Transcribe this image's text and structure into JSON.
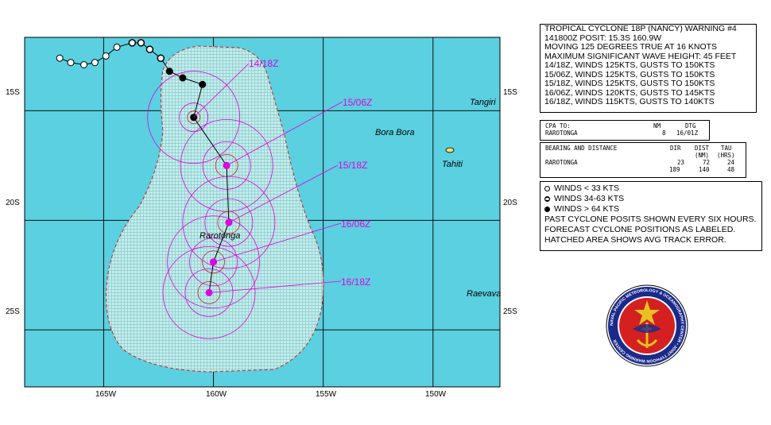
{
  "map": {
    "bg_color": "#ffffff",
    "ocean_color": "#5ad0e0",
    "hatch_color": "#8ec8c8",
    "grid_color": "#111111",
    "track_color": "#e000e0",
    "lat_labels": [
      "15S",
      "20S",
      "25S"
    ],
    "lon_labels": [
      "165W",
      "160W",
      "155W",
      "150W"
    ],
    "places": {
      "tangiri": "Tangiri",
      "bora_bora": "Bora Bora",
      "tahiti": "Tahiti",
      "rarotonga": "Rarotonga",
      "raevavae": "Raevava"
    },
    "forecast_labels": [
      "14/18Z",
      "15/06Z",
      "15/18Z",
      "16/06Z",
      "16/18Z"
    ],
    "forecast_positions": [
      {
        "time": "14/18Z",
        "lat": -15.3,
        "lon": -160.9
      },
      {
        "time": "15/06Z",
        "lat": -17.5,
        "lon": -159.4
      },
      {
        "time": "15/18Z",
        "lat": -20.1,
        "lon": -159.3
      },
      {
        "time": "16/06Z",
        "lat": -21.9,
        "lon": -160.0
      },
      {
        "time": "16/18Z",
        "lat": -23.3,
        "lon": -160.2
      }
    ],
    "past_track": [
      {
        "lat": -12.6,
        "lon": -167.0,
        "intensity": "weak"
      },
      {
        "lat": -12.8,
        "lon": -166.5,
        "intensity": "weak"
      },
      {
        "lat": -12.9,
        "lon": -165.9,
        "intensity": "weak"
      },
      {
        "lat": -12.8,
        "lon": -165.4,
        "intensity": "weak"
      },
      {
        "lat": -12.5,
        "lon": -164.9,
        "intensity": "weak"
      },
      {
        "lat": -12.1,
        "lon": -164.4,
        "intensity": "weak"
      },
      {
        "lat": -11.9,
        "lon": -163.7,
        "intensity": "moderate"
      },
      {
        "lat": -11.9,
        "lon": -163.3,
        "intensity": "moderate"
      },
      {
        "lat": -12.2,
        "lon": -162.9,
        "intensity": "moderate"
      },
      {
        "lat": -12.6,
        "lon": -162.4,
        "intensity": "moderate"
      },
      {
        "lat": -13.2,
        "lon": -162.0,
        "intensity": "strong"
      },
      {
        "lat": -13.5,
        "lon": -161.4,
        "intensity": "strong"
      },
      {
        "lat": -13.8,
        "lon": -160.5,
        "intensity": "strong"
      },
      {
        "lat": -15.3,
        "lon": -160.9,
        "intensity": "strong"
      }
    ]
  },
  "warning": {
    "lines": [
      "TROPICAL CYCLONE 18P (NANCY) WARNING #4",
      "141800Z POSIT: 15.3S 160.9W",
      "MOVING 125 DEGREES TRUE AT 16 KNOTS",
      "MAXIMUM SIGNIFICANT WAVE HEIGHT: 45 FEET",
      "14/18Z, WINDS 125KTS, GUSTS TO 150KTS",
      "15/06Z, WINDS 125KTS, GUSTS TO 150KTS",
      "15/18Z, WINDS 125KTS, GUSTS TO 150KTS",
      "16/06Z, WINDS 120KTS, GUSTS TO 145KTS",
      "16/18Z, WINDS 115KTS, GUSTS TO 140KTS"
    ]
  },
  "cpa": {
    "header": {
      "label": "CPA TO:",
      "nm": "NM",
      "dtg": "DTG"
    },
    "row": {
      "place": "RAROTONGA",
      "nm": "8",
      "dtg": "16/01Z"
    }
  },
  "bearing": {
    "header1": {
      "label": "BEARING AND DISTANCE",
      "dir": "DIR",
      "dist": "DIST",
      "tau": "TAU"
    },
    "header2": {
      "dist": "(NM)",
      "tau": "(HRS)"
    },
    "rows": [
      {
        "place": "RAROTONGA",
        "dir": "23",
        "dist": "72",
        "tau": "24"
      },
      {
        "place": "",
        "dir": "189",
        "dist": "140",
        "tau": "48"
      }
    ]
  },
  "legend": {
    "weak": "WINDS < 33 KTS",
    "moderate": "WINDS 34-63  KTS",
    "strong": "WINDS > 64 KTS",
    "notes": [
      "PAST CYCLONE POSITS SHOWN EVERY SIX HOURS.",
      "FORECAST CYCLONE POSITIONS AS LABELED.",
      "HATCHED AREA SHOWS AVG TRACK ERROR."
    ]
  },
  "seal": {
    "outer_text": "NAVAL PACIFIC METEOROLOGY & OCEANOGRAPHY CENTER",
    "inner_text": "JOINT TYPHOON WARNING CENTER",
    "ring_color": "#1a2a8a",
    "fill_color": "#d42020",
    "accent_color": "#e8c020"
  }
}
